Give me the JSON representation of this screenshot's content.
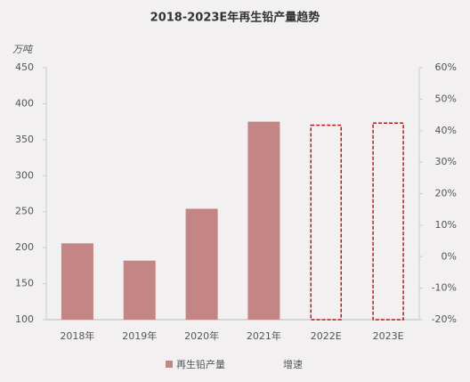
{
  "chart_data": {
    "type": "bar",
    "title": "2018-2023E年再生铅产量趋势",
    "y_unit": "万吨",
    "categories": [
      "2018年",
      "2019年",
      "2020年",
      "2021年",
      "2022E",
      "2023E"
    ],
    "series": [
      {
        "name": "再生铅产量",
        "color": "#c48585",
        "values": [
          206,
          182,
          254,
          375,
          370,
          373
        ],
        "dashed": [
          false,
          false,
          false,
          false,
          true,
          true
        ],
        "dash_color": "#b01c1c"
      },
      {
        "name": "增速",
        "axis": "y2",
        "values": [
          null,
          null,
          null,
          null,
          null,
          null
        ]
      }
    ],
    "ylim": [
      100,
      450
    ],
    "yticks": [
      100,
      150,
      200,
      250,
      300,
      350,
      400,
      450
    ],
    "y2lim": [
      -20,
      60
    ],
    "y2ticks": [
      {
        "value": -20,
        "label": "-20%"
      },
      {
        "value": -10,
        "label": "-10%"
      },
      {
        "value": 0,
        "label": "0%"
      },
      {
        "value": 10,
        "label": "10%"
      },
      {
        "value": 20,
        "label": "20%"
      },
      {
        "value": 30,
        "label": "30%"
      },
      {
        "value": 40,
        "label": "40%"
      },
      {
        "value": 50,
        "label": "50%"
      },
      {
        "value": 60,
        "label": "60%"
      }
    ],
    "grid": false
  }
}
